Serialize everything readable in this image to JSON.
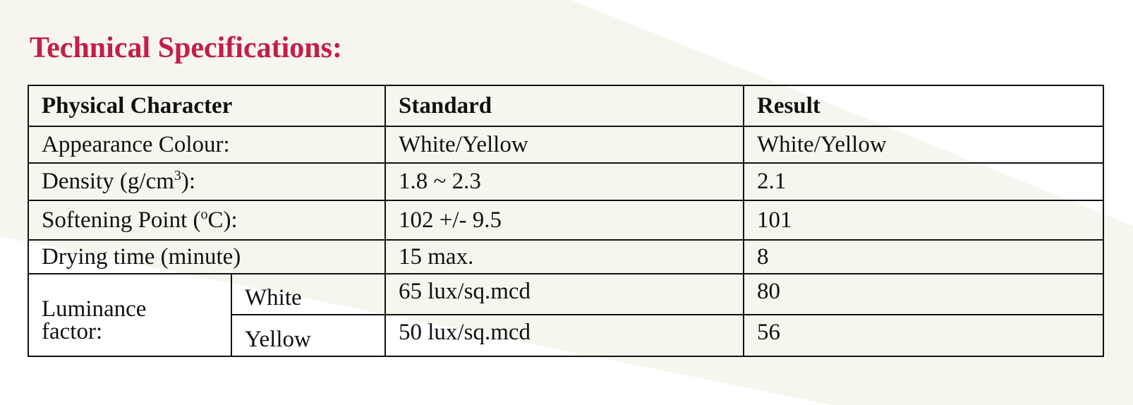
{
  "title": "Technical Specifications:",
  "header": {
    "physical_character": "Physical Character",
    "standard": "Standard",
    "result": "Result"
  },
  "rows": [
    {
      "label": "Appearance Colour:",
      "standard": "White/Yellow",
      "result": "White/Yellow"
    },
    {
      "label_prefix": "Density (g/cm",
      "label_sup": "3",
      "label_suffix": "):",
      "standard": "1.8 ~ 2.3",
      "result": "2.1"
    },
    {
      "label_prefix": "Softening Point (",
      "label_sup": "o",
      "label_suffix": "C):",
      "standard": "102 +/- 9.5",
      "result": "101"
    },
    {
      "label": "Drying time (minute)",
      "standard": "15 max.",
      "result": "8"
    }
  ],
  "luminance": {
    "label_line1": "Luminance",
    "label_line2": "factor:",
    "items": [
      {
        "sub": "White",
        "standard": "65 lux/sq.mcd",
        "result": "80"
      },
      {
        "sub": "Yellow",
        "standard": "50 lux/sq.mcd",
        "result": "56"
      }
    ]
  }
}
